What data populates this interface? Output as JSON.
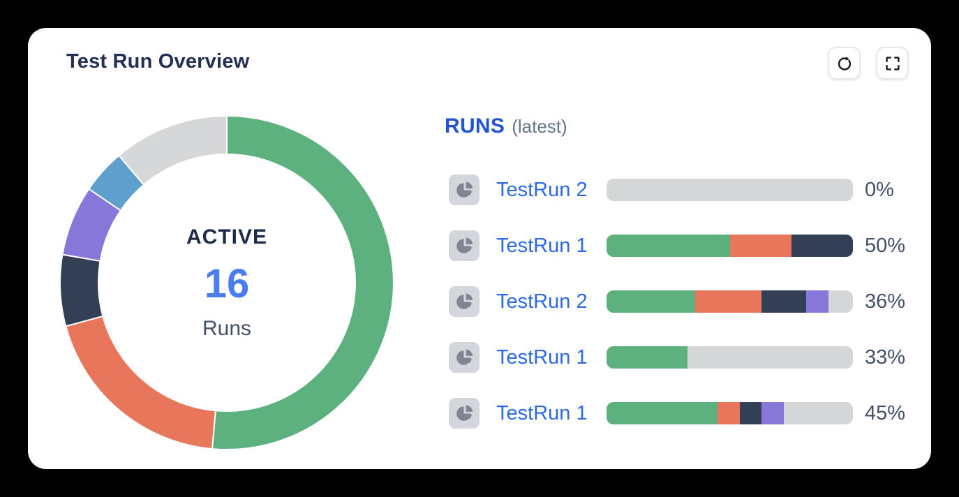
{
  "card": {
    "title": "Test Run Overview"
  },
  "colors": {
    "green": "#5cb17f",
    "orange": "#e8765a",
    "dark_navy": "#333f54",
    "purple": "#8677d8",
    "blue": "#5f9fcd",
    "gray": "#d5d6d8",
    "link_blue": "#2b6ae3",
    "heading_blue": "#2254d3",
    "value_blue": "#4b7dee"
  },
  "donut": {
    "center_label": "ACTIVE",
    "center_value": "16",
    "center_sublabel": "Runs",
    "value_color": "#4b7dee",
    "segments": [
      {
        "name": "green",
        "value": 51.4,
        "color": "#5cb17f"
      },
      {
        "name": "orange",
        "value": 19.4,
        "color": "#e8765a"
      },
      {
        "name": "dark-navy",
        "value": 6.9,
        "color": "#333f54"
      },
      {
        "name": "purple",
        "value": 6.8,
        "color": "#8677d8"
      },
      {
        "name": "blue",
        "value": 4.3,
        "color": "#5f9fcd"
      },
      {
        "name": "gray",
        "value": 11.2,
        "color": "#d6d7d8"
      }
    ]
  },
  "runs": {
    "heading": "RUNS",
    "heading_suffix": "(latest)",
    "rows": [
      {
        "label": "TestRun 2",
        "percent": "0%",
        "segments": []
      },
      {
        "label": "TestRun 1",
        "percent": "50%",
        "segments": [
          {
            "name": "green",
            "value": 50,
            "color": "#5cb17f"
          },
          {
            "name": "orange",
            "value": 25,
            "color": "#e8765a"
          },
          {
            "name": "dark-navy",
            "value": 25,
            "color": "#333f54"
          }
        ]
      },
      {
        "label": "TestRun 2",
        "percent": "36%",
        "segments": [
          {
            "name": "green",
            "value": 36,
            "color": "#5cb17f"
          },
          {
            "name": "orange",
            "value": 27,
            "color": "#e8765a"
          },
          {
            "name": "dark-navy",
            "value": 18,
            "color": "#333f54"
          },
          {
            "name": "purple",
            "value": 9,
            "color": "#8677d8"
          }
        ]
      },
      {
        "label": "TestRun 1",
        "percent": "33%",
        "segments": [
          {
            "name": "green",
            "value": 33,
            "color": "#5cb17f"
          }
        ]
      },
      {
        "label": "TestRun 1",
        "percent": "45%",
        "segments": [
          {
            "name": "green",
            "value": 45,
            "color": "#5cb17f"
          },
          {
            "name": "orange",
            "value": 9,
            "color": "#e8765a"
          },
          {
            "name": "dark-navy",
            "value": 9,
            "color": "#333f54"
          },
          {
            "name": "purple",
            "value": 9,
            "color": "#8677d8"
          }
        ]
      }
    ]
  },
  "chart_data": [
    {
      "type": "pie",
      "title": "Test Run Overview donut (ACTIVE 16 Runs)",
      "labels": [
        "green",
        "orange",
        "dark-navy",
        "purple",
        "blue",
        "gray"
      ],
      "values": [
        51.4,
        19.4,
        6.9,
        6.8,
        4.3,
        11.2
      ],
      "colors": [
        "#5cb17f",
        "#e8765a",
        "#333f54",
        "#8677d8",
        "#5f9fcd",
        "#d6d7d8"
      ],
      "center_text": [
        "ACTIVE",
        "16",
        "Runs"
      ],
      "donut": true,
      "start_angle_deg": 0,
      "direction": "clockwise"
    },
    {
      "type": "bar",
      "title": "RUNS (latest)",
      "categories": [
        "TestRun 2",
        "TestRun 1",
        "TestRun 2",
        "TestRun 1",
        "TestRun 1"
      ],
      "values": [
        0,
        50,
        36,
        33,
        45
      ],
      "value_labels": [
        "0%",
        "50%",
        "36%",
        "33%",
        "45%"
      ],
      "stacked_segments": [
        [],
        [
          [
            "green",
            50
          ],
          [
            "orange",
            25
          ],
          [
            "dark-navy",
            25
          ]
        ],
        [
          [
            "green",
            36
          ],
          [
            "orange",
            27
          ],
          [
            "dark-navy",
            18
          ],
          [
            "purple",
            9
          ]
        ],
        [
          [
            "green",
            33
          ]
        ],
        [
          [
            "green",
            45
          ],
          [
            "orange",
            9
          ],
          [
            "dark-navy",
            9
          ],
          [
            "purple",
            9
          ]
        ]
      ],
      "xlim": [
        0,
        100
      ],
      "track_color": "#d5d6d8"
    }
  ]
}
